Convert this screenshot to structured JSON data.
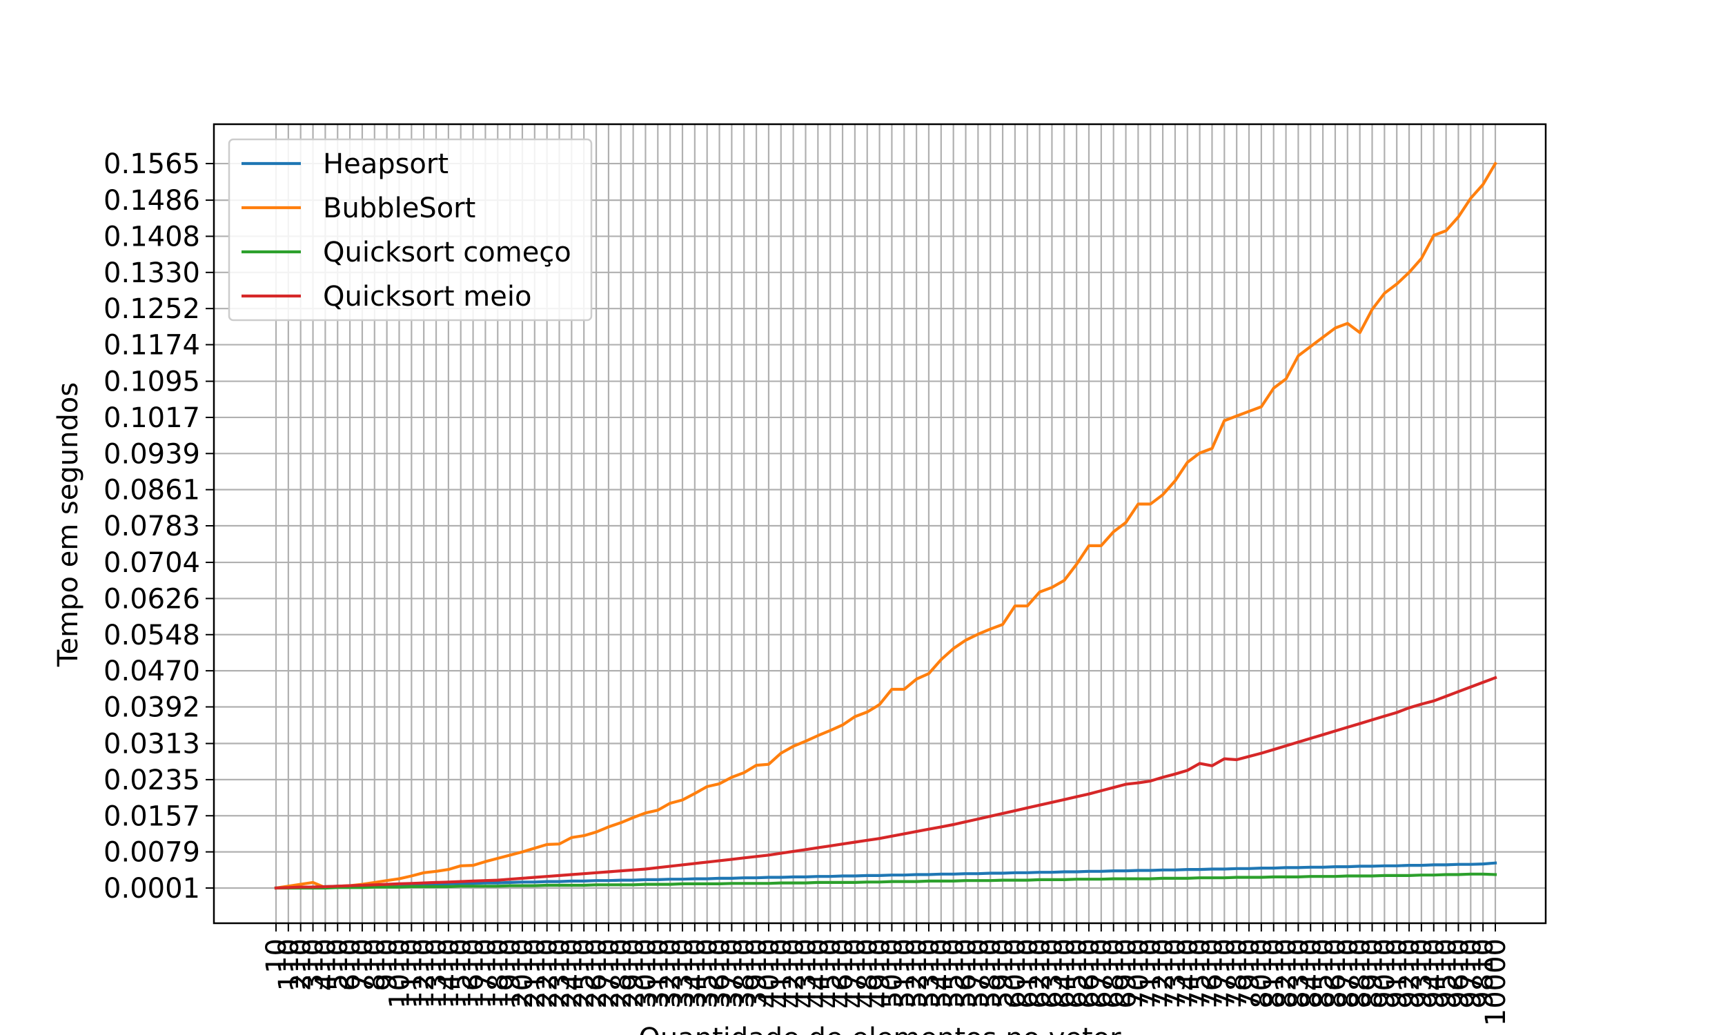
{
  "chart_data": {
    "type": "line",
    "title": "",
    "xlabel": "Quantidade de elementos no vetor",
    "ylabel": "Tempo em segundos",
    "grid": true,
    "legend_position": "upper-left",
    "y_ticks": [
      "0.0001",
      "0.0079",
      "0.0157",
      "0.0235",
      "0.0313",
      "0.0392",
      "0.0470",
      "0.0548",
      "0.0626",
      "0.0704",
      "0.0783",
      "0.0861",
      "0.0939",
      "0.1017",
      "0.1095",
      "0.1174",
      "0.1252",
      "0.1330",
      "0.1408",
      "0.1486",
      "0.1565"
    ],
    "ylim": [
      -0.0075,
      0.165
    ],
    "x_start": 10,
    "x_step": 100,
    "x_count": 100,
    "x_last": 10000,
    "series": [
      {
        "name": "Heapsort",
        "color": "#1f77b4",
        "values": [
          0.0001,
          0.0002,
          0.0003,
          0.0003,
          0.0004,
          0.0005,
          0.0005,
          0.0006,
          0.0007,
          0.0007,
          0.0008,
          0.0008,
          0.0009,
          0.001,
          0.001,
          0.0011,
          0.0011,
          0.0012,
          0.0012,
          0.0013,
          0.0014,
          0.0014,
          0.0015,
          0.0015,
          0.0016,
          0.0016,
          0.0017,
          0.0017,
          0.0018,
          0.0018,
          0.0019,
          0.0019,
          0.002,
          0.002,
          0.0021,
          0.0021,
          0.0022,
          0.0022,
          0.0023,
          0.0023,
          0.0024,
          0.0024,
          0.0025,
          0.0025,
          0.0026,
          0.0026,
          0.0027,
          0.0027,
          0.0028,
          0.0028,
          0.0029,
          0.0029,
          0.003,
          0.003,
          0.0031,
          0.0031,
          0.0032,
          0.0032,
          0.0033,
          0.0033,
          0.0034,
          0.0034,
          0.0035,
          0.0035,
          0.0036,
          0.0036,
          0.0037,
          0.0037,
          0.0038,
          0.0038,
          0.0039,
          0.0039,
          0.004,
          0.004,
          0.0041,
          0.0041,
          0.0042,
          0.0042,
          0.0043,
          0.0043,
          0.0044,
          0.0044,
          0.0045,
          0.0045,
          0.0046,
          0.0046,
          0.0047,
          0.0047,
          0.0048,
          0.0048,
          0.0049,
          0.0049,
          0.005,
          0.005,
          0.0051,
          0.0051,
          0.0052,
          0.0052,
          0.0053,
          0.0055
        ]
      },
      {
        "name": "BubbleSort",
        "color": "#ff7f0e",
        "values": [
          0.0001,
          0.0005,
          0.0009,
          0.0013,
          0.0002,
          0.0005,
          0.0006,
          0.0009,
          0.0013,
          0.0017,
          0.0021,
          0.0027,
          0.0034,
          0.0037,
          0.0041,
          0.0049,
          0.005,
          0.0058,
          0.0065,
          0.0072,
          0.0079,
          0.0087,
          0.0095,
          0.0096,
          0.011,
          0.0114,
          0.0122,
          0.0133,
          0.0142,
          0.0153,
          0.0163,
          0.0169,
          0.0184,
          0.0191,
          0.0205,
          0.022,
          0.0226,
          0.024,
          0.025,
          0.0266,
          0.0268,
          0.0292,
          0.0307,
          0.0318,
          0.033,
          0.0341,
          0.0353,
          0.0371,
          0.0381,
          0.0397,
          0.043,
          0.043,
          0.0452,
          0.0464,
          0.0494,
          0.0518,
          0.0536,
          0.0549,
          0.056,
          0.057,
          0.061,
          0.061,
          0.064,
          0.065,
          0.0665,
          0.07,
          0.074,
          0.074,
          0.077,
          0.079,
          0.083,
          0.083,
          0.085,
          0.088,
          0.092,
          0.094,
          0.095,
          0.101,
          0.102,
          0.103,
          0.104,
          0.108,
          0.11,
          0.115,
          0.117,
          0.119,
          0.121,
          0.122,
          0.12,
          0.125,
          0.1285,
          0.1305,
          0.133,
          0.136,
          0.141,
          0.142,
          0.145,
          0.149,
          0.152,
          0.1565
        ]
      },
      {
        "name": "Quicksort começo",
        "color": "#2ca02c",
        "values": [
          0.0001,
          0.0001,
          0.0001,
          0.0001,
          0.0001,
          0.0002,
          0.0002,
          0.0002,
          0.0003,
          0.0003,
          0.0003,
          0.0004,
          0.0004,
          0.0004,
          0.0004,
          0.0005,
          0.0005,
          0.0005,
          0.0005,
          0.0006,
          0.0006,
          0.0006,
          0.0007,
          0.0007,
          0.0007,
          0.0007,
          0.0008,
          0.0008,
          0.0008,
          0.0008,
          0.0009,
          0.0009,
          0.0009,
          0.001,
          0.001,
          0.001,
          0.001,
          0.0011,
          0.0011,
          0.0011,
          0.0011,
          0.0012,
          0.0012,
          0.0012,
          0.0013,
          0.0013,
          0.0013,
          0.0013,
          0.0014,
          0.0014,
          0.0015,
          0.0015,
          0.0015,
          0.0016,
          0.0016,
          0.0016,
          0.0017,
          0.0017,
          0.0017,
          0.0018,
          0.0018,
          0.0018,
          0.0019,
          0.0019,
          0.0019,
          0.002,
          0.002,
          0.002,
          0.0021,
          0.0021,
          0.0021,
          0.0021,
          0.0022,
          0.0022,
          0.0022,
          0.0023,
          0.0023,
          0.0023,
          0.0024,
          0.0024,
          0.0024,
          0.0025,
          0.0025,
          0.0025,
          0.0026,
          0.0026,
          0.0026,
          0.0027,
          0.0027,
          0.0027,
          0.0028,
          0.0028,
          0.0028,
          0.0029,
          0.0029,
          0.003,
          0.003,
          0.0031,
          0.0031,
          0.003
        ]
      },
      {
        "name": "Quicksort meio",
        "color": "#d62728",
        "values": [
          0.0001,
          0.0002,
          0.0003,
          0.0003,
          0.0004,
          0.0005,
          0.0006,
          0.0007,
          0.0008,
          0.0009,
          0.001,
          0.0011,
          0.0012,
          0.0013,
          0.0014,
          0.0015,
          0.0016,
          0.0017,
          0.0018,
          0.002,
          0.0022,
          0.0024,
          0.0026,
          0.0028,
          0.003,
          0.0032,
          0.0034,
          0.0036,
          0.0038,
          0.004,
          0.0042,
          0.0045,
          0.0048,
          0.0051,
          0.0054,
          0.0057,
          0.006,
          0.0063,
          0.0066,
          0.0069,
          0.0072,
          0.0076,
          0.008,
          0.0084,
          0.0088,
          0.0092,
          0.0096,
          0.01,
          0.0104,
          0.0108,
          0.0113,
          0.0118,
          0.0123,
          0.0128,
          0.0133,
          0.0138,
          0.0144,
          0.015,
          0.0156,
          0.0162,
          0.0168,
          0.0174,
          0.018,
          0.0186,
          0.0192,
          0.0198,
          0.0204,
          0.0211,
          0.0218,
          0.0225,
          0.0228,
          0.0232,
          0.024,
          0.0247,
          0.0255,
          0.027,
          0.0265,
          0.028,
          0.0278,
          0.0285,
          0.0292,
          0.03,
          0.0308,
          0.0316,
          0.0324,
          0.0332,
          0.034,
          0.0348,
          0.0356,
          0.0364,
          0.0372,
          0.038,
          0.039,
          0.0398,
          0.0405,
          0.0415,
          0.0425,
          0.0435,
          0.0445,
          0.0455
        ]
      }
    ]
  }
}
